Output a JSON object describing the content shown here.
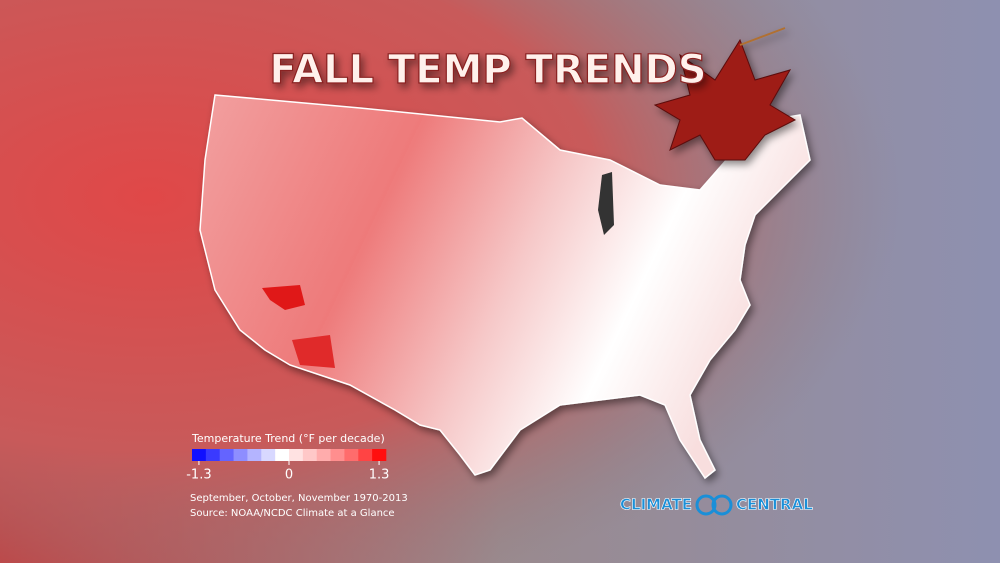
{
  "title": "FALL TEMP TRENDS",
  "legend": {
    "title": "Temperature Trend (°F per decade)",
    "range": [
      -1.3,
      1.3
    ],
    "ticks": [
      -1.3,
      0,
      1.3
    ],
    "colors": [
      "#1010ff",
      "#3a3aff",
      "#6464ff",
      "#8e8eff",
      "#b4b4ff",
      "#d8d8ff",
      "#ffffff",
      "#ffe2e2",
      "#ffc8c8",
      "#ffacac",
      "#ff8e8e",
      "#ff6c6c",
      "#ff4444",
      "#ff0f0f"
    ]
  },
  "notes": [
    "September, October, November 1970-2013",
    "Source: NOAA/NCDC Climate at a Glance"
  ],
  "logo": {
    "left": "CLIMATE",
    "right": "CENTRAL"
  }
}
